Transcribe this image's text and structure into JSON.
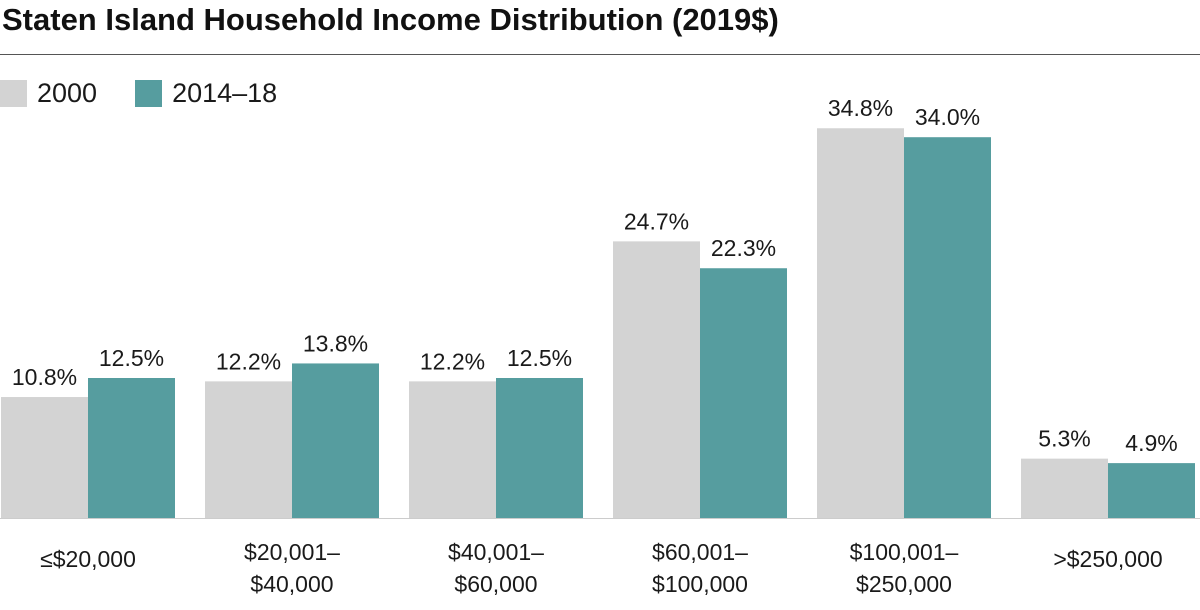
{
  "title": "Staten Island Household Income Distribution (2019$)",
  "colors": {
    "s2000": "#d3d3d3",
    "s2014": "#569d9f",
    "baseline": "#cccccc",
    "text": "#1a1a1a"
  },
  "legend": [
    {
      "label": "2000",
      "color": "#d3d3d3"
    },
    {
      "label": "2014–18",
      "color": "#569d9f"
    }
  ],
  "chart_data": {
    "type": "bar",
    "title": "Staten Island Household Income Distribution (2019$)",
    "categories": [
      [
        "≤$20,000"
      ],
      [
        "$20,001–",
        "$40,000"
      ],
      [
        "$40,001–",
        "$60,000"
      ],
      [
        "$60,001–",
        "$100,000"
      ],
      [
        "$100,001–",
        "$250,000"
      ],
      [
        ">$250,000"
      ]
    ],
    "series": [
      {
        "name": "2000",
        "values": [
          10.8,
          12.2,
          12.2,
          24.7,
          34.8,
          5.3
        ],
        "labels": [
          "10.8%",
          "12.2%",
          "12.2%",
          "24.7%",
          "34.8%",
          "5.3%"
        ]
      },
      {
        "name": "2014–18",
        "values": [
          12.5,
          13.8,
          12.5,
          22.3,
          34.0,
          4.9
        ],
        "labels": [
          "12.5%",
          "13.8%",
          "12.5%",
          "22.3%",
          "34.0%",
          "4.9%"
        ]
      }
    ],
    "unit": "%",
    "ylim": [
      0,
      40
    ],
    "grid": false,
    "legend_position": "top-left"
  }
}
